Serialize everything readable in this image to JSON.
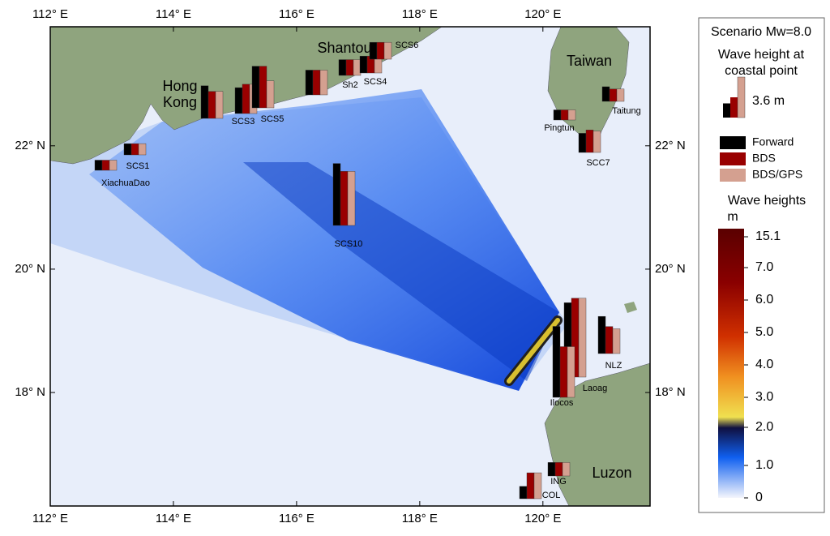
{
  "map": {
    "lonlim": [
      112,
      121.74
    ],
    "latlim": [
      16.16,
      23.93
    ],
    "lon_ticks": [
      {
        "value": 112,
        "label": "112° E"
      },
      {
        "value": 114,
        "label": "114° E"
      },
      {
        "value": 116,
        "label": "116° E"
      },
      {
        "value": 118,
        "label": "118° E"
      },
      {
        "value": 120,
        "label": "120° E"
      }
    ],
    "lat_ticks": [
      {
        "value": 18,
        "label": "18° N"
      },
      {
        "value": 20,
        "label": "20° N"
      },
      {
        "value": 22,
        "label": "22° N"
      }
    ],
    "places": [
      "Shantou",
      "Hong Kong",
      "Taiwan",
      "Luzon"
    ],
    "stations": [
      "SCS1",
      "XiachuaDao",
      null,
      "SCS3",
      "SCS5",
      null,
      "Sh2",
      "SCS4",
      "SCS6",
      "SCS10",
      "Pingtun",
      "Taitung",
      "SCC7",
      "NLZ",
      "Laoag",
      "Ilocos",
      "ING",
      "COL"
    ],
    "series": [
      {
        "name": "Forward",
        "color": "#000000",
        "values": [
          1.0,
          0.9,
          2.9,
          2.3,
          3.7,
          2.2,
          1.4,
          1.5,
          1.5,
          5.5,
          0.9,
          1.3,
          1.7,
          3.3,
          6.6,
          6.3,
          1.2,
          1.1
        ]
      },
      {
        "name": "BDS",
        "color": "#990000",
        "values": [
          1.0,
          0.9,
          2.4,
          2.6,
          3.7,
          2.2,
          1.4,
          1.5,
          1.5,
          4.8,
          0.9,
          1.1,
          2.0,
          2.4,
          7.0,
          4.5,
          1.2,
          2.3
        ]
      },
      {
        "name": "BDS/GPS",
        "color": "#d4a090",
        "values": [
          1.0,
          0.9,
          2.4,
          2.6,
          2.4,
          2.2,
          1.4,
          1.5,
          1.5,
          4.8,
          0.9,
          1.1,
          1.9,
          2.2,
          7.0,
          4.5,
          1.2,
          2.3
        ]
      }
    ]
  },
  "legend": {
    "title": "Scenario Mw=8.0",
    "glyph_title": "Wave height at coastal point",
    "scale": {
      "value": 3.6,
      "label": "3.6 m"
    }
  },
  "colorbar": {
    "title": "Wave heights",
    "unit": "m",
    "ticks": [
      {
        "value": 15.1,
        "label": "15.1"
      },
      {
        "value": 7,
        "label": "7.0"
      },
      {
        "value": 6,
        "label": "6.0"
      },
      {
        "value": 5,
        "label": "5.0"
      },
      {
        "value": 4,
        "label": "4.0"
      },
      {
        "value": 3,
        "label": "3.0"
      },
      {
        "value": 2,
        "label": "2.0"
      },
      {
        "value": 1,
        "label": "1.0"
      },
      0
    ]
  }
}
